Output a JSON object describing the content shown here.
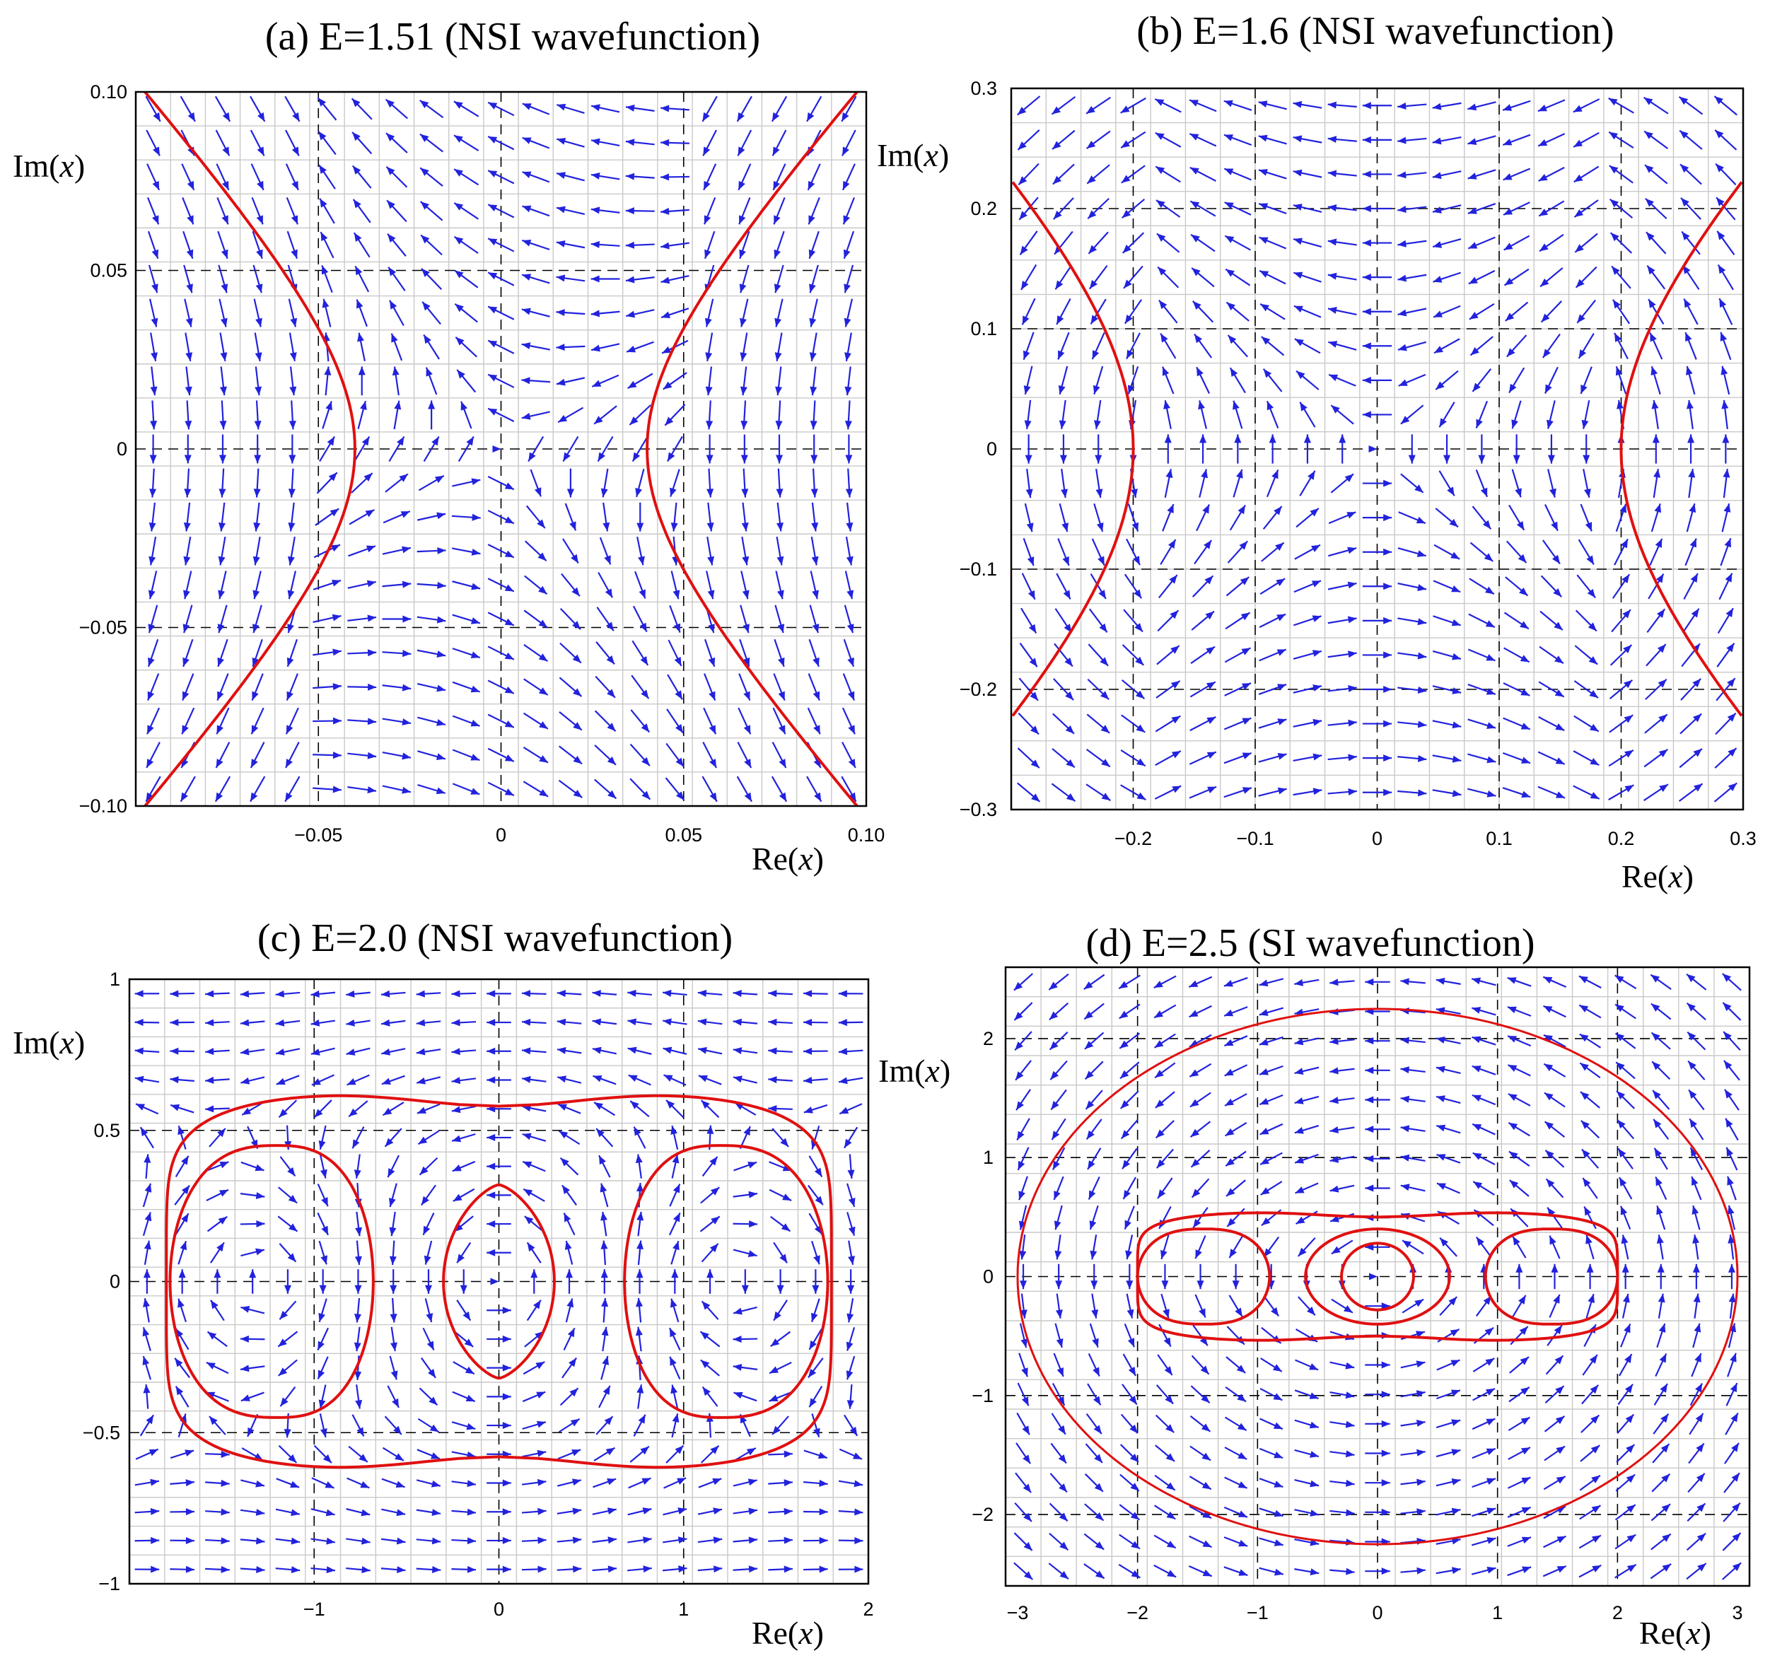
{
  "chart_data": [
    {
      "id": "a",
      "type": "vector-field",
      "title": "(a) E=1.51 (NSI wavefunction)",
      "xlabel": "Re",
      "ylabel": "Im",
      "axis_var": "x",
      "xlim": [
        -0.1,
        0.1
      ],
      "ylim": [
        -0.1,
        0.1
      ],
      "xticks": [
        -0.05,
        0,
        0.05,
        0.1
      ],
      "xtick_labels": [
        "−0.05",
        "0",
        "0.05",
        "0.10"
      ],
      "yticks": [
        -0.1,
        -0.05,
        0,
        0.05,
        0.1
      ],
      "ytick_labels": [
        "−0.10",
        "−0.05",
        "0",
        "0.05",
        "0.10"
      ],
      "major_grid": [
        -0.05,
        0,
        0.05
      ],
      "field": "saddle",
      "grid_n": 21,
      "curves": [
        {
          "kind": "hyperbola",
          "side": "left",
          "a": 0.04,
          "b": 0.045
        },
        {
          "kind": "hyperbola",
          "side": "right",
          "a": 0.04,
          "b": 0.045
        }
      ]
    },
    {
      "id": "b",
      "type": "vector-field",
      "title": "(b) E=1.6 (NSI wavefunction)",
      "xlabel": "Re",
      "ylabel": "Im",
      "axis_var": "x",
      "xlim": [
        -0.3,
        0.3
      ],
      "ylim": [
        -0.3,
        0.3
      ],
      "xticks": [
        -0.2,
        -0.1,
        0,
        0.1,
        0.2,
        0.3
      ],
      "xtick_labels": [
        "−0.2",
        "−0.1",
        "0",
        "0.1",
        "0.2",
        "0.3"
      ],
      "yticks": [
        -0.3,
        -0.2,
        -0.1,
        0,
        0.1,
        0.2,
        0.3
      ],
      "ytick_labels": [
        "−0.3",
        "−0.2",
        "−0.1",
        "0",
        "0.1",
        "0.2",
        "0.3"
      ],
      "major_grid": [
        -0.2,
        -0.1,
        0,
        0.1,
        0.2
      ],
      "field": "double-saddle",
      "grid_n": 21,
      "curves": [
        {
          "kind": "hyperbola",
          "side": "left",
          "a": 0.2,
          "b": 0.2
        },
        {
          "kind": "hyperbola",
          "side": "right",
          "a": 0.2,
          "b": 0.2
        }
      ]
    },
    {
      "id": "c",
      "type": "vector-field",
      "title": "(c) E=2.0 (NSI wavefunction)",
      "xlabel": "Re",
      "ylabel": "Im",
      "axis_var": "x",
      "xlim": [
        -2,
        2
      ],
      "ylim": [
        -1,
        1
      ],
      "xticks": [
        -1,
        0,
        1,
        2
      ],
      "xtick_labels": [
        "−1",
        "0",
        "1",
        "2"
      ],
      "yticks": [
        -1,
        -0.5,
        0,
        0.5,
        1
      ],
      "ytick_labels": [
        "−1",
        "−0.5",
        "0",
        "0.5",
        "1"
      ],
      "major_grid_x": [
        -1,
        0,
        1
      ],
      "major_grid_y": [
        -0.5,
        0,
        0.5
      ],
      "field": "triple-vortex",
      "grid_n": 21,
      "curves": [
        {
          "kind": "outer",
          "cx": 0,
          "w": 1.8,
          "h": 0.63,
          "dip": 0.05
        },
        {
          "kind": "oval",
          "cx": -1.2,
          "wl": 0.58,
          "wr": 0.52,
          "h": 0.45
        },
        {
          "kind": "oval",
          "cx": 1.2,
          "wl": 0.52,
          "wr": 0.58,
          "h": 0.45
        },
        {
          "kind": "lens",
          "cx": 0,
          "w": 0.3,
          "h": 0.32
        }
      ]
    },
    {
      "id": "d",
      "type": "vector-field",
      "title": "(d) E=2.5 (SI wavefunction)",
      "xlabel": "Re",
      "ylabel": "Im",
      "axis_var": "x",
      "xlim": [
        -3.1,
        3.1
      ],
      "ylim": [
        -2.6,
        2.6
      ],
      "xticks": [
        -3,
        -2,
        -1,
        0,
        1,
        2,
        3
      ],
      "xtick_labels": [
        "−3",
        "−2",
        "−1",
        "0",
        "1",
        "2",
        "3"
      ],
      "yticks": [
        -2,
        -1,
        0,
        1,
        2
      ],
      "ytick_labels": [
        "−2",
        "−1",
        "0",
        "1",
        "2"
      ],
      "major_grid_x": [
        -2,
        -1,
        0,
        1,
        2
      ],
      "major_grid_y": [
        -2,
        -1,
        0,
        1,
        2
      ],
      "field": "rotation",
      "grid_n": 21,
      "curves": [
        {
          "kind": "ellipse",
          "cx": 0,
          "rx": 3.0,
          "ry": 2.25
        },
        {
          "kind": "outer",
          "cx": 0,
          "w": 2.0,
          "h": 0.55,
          "dip": 0.05
        },
        {
          "kind": "oval",
          "cx": -1.45,
          "wl": 0.55,
          "wr": 0.55,
          "h": 0.4
        },
        {
          "kind": "oval",
          "cx": 1.45,
          "wl": 0.55,
          "wr": 0.55,
          "h": 0.4
        },
        {
          "kind": "ellipse",
          "cx": 0,
          "rx": 0.6,
          "ry": 0.4
        },
        {
          "kind": "ellipse",
          "cx": 0,
          "rx": 0.3,
          "ry": 0.28
        }
      ]
    }
  ]
}
